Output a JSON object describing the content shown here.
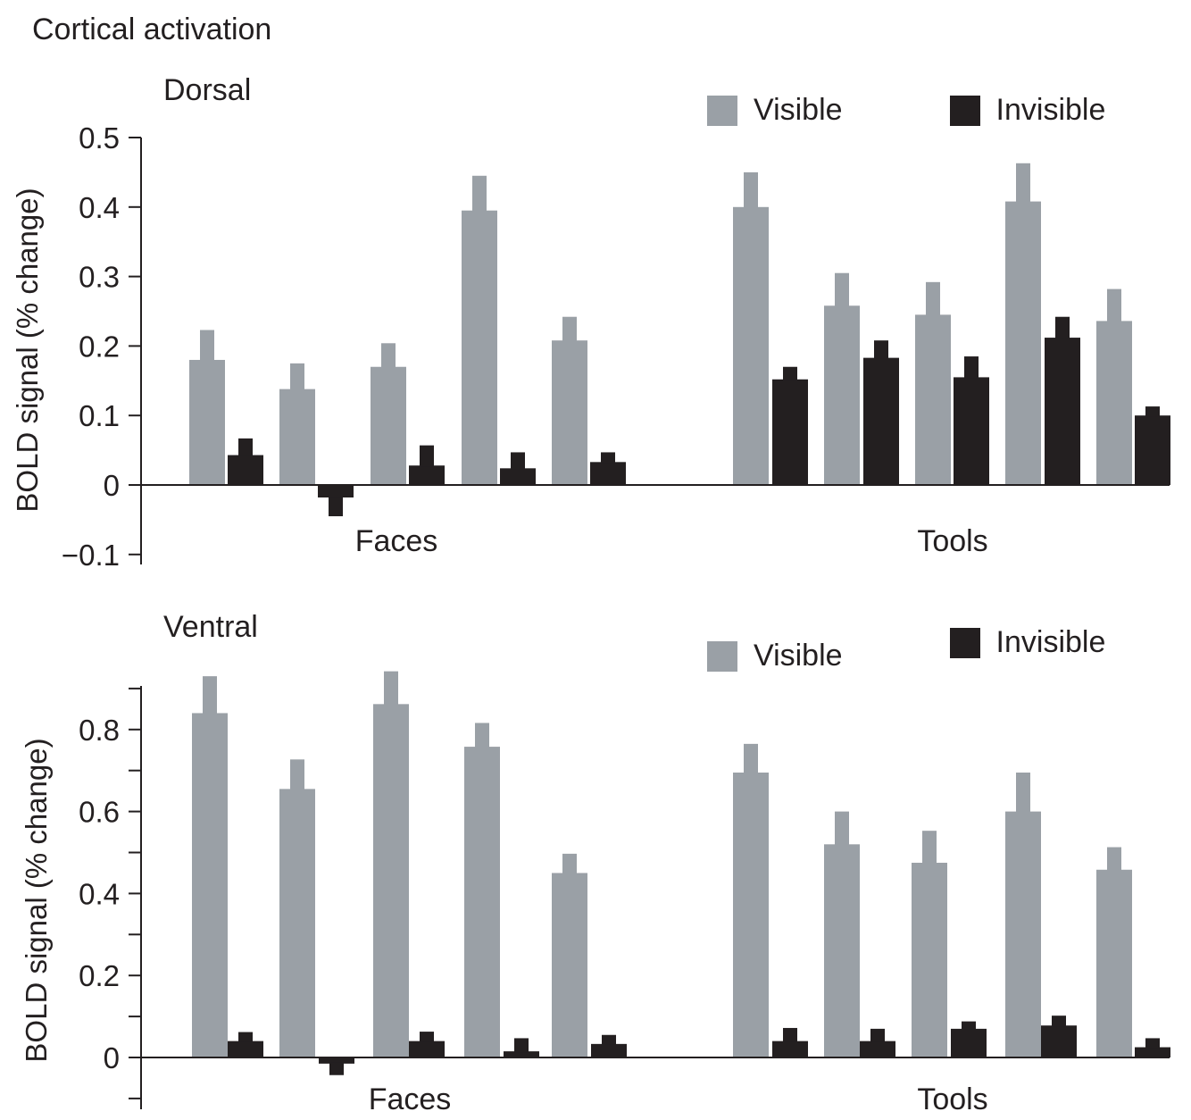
{
  "title": "Cortical activation",
  "colors": {
    "visible": "#9aa0a6",
    "invisible": "#231f20"
  },
  "chart_data": [
    {
      "type": "bar",
      "panel": "Dorsal",
      "ylabel": "BOLD signal (% change)",
      "ylim": [
        -0.1,
        0.5
      ],
      "yticks": [
        -0.1,
        0,
        0.1,
        0.2,
        0.3,
        0.4,
        0.5
      ],
      "ytick_labels": [
        "−0.1",
        "0",
        "0.1",
        "0.2",
        "0.3",
        "0.4",
        "0.5"
      ],
      "groups": [
        "Faces",
        "Tools"
      ],
      "legend": [
        "Visible",
        "Invisible"
      ],
      "legend_position": "top-right",
      "series": [
        {
          "name": "Visible",
          "group": "Faces",
          "values": [
            0.18,
            0.138,
            0.17,
            0.395,
            0.208
          ],
          "errors": [
            0.043,
            0.037,
            0.034,
            0.05,
            0.034
          ]
        },
        {
          "name": "Invisible",
          "group": "Faces",
          "values": [
            0.043,
            -0.018,
            0.028,
            0.024,
            0.033
          ],
          "errors": [
            0.024,
            0.027,
            0.029,
            0.023,
            0.014
          ]
        },
        {
          "name": "Visible",
          "group": "Tools",
          "values": [
            0.4,
            0.258,
            0.245,
            0.408,
            0.236
          ],
          "errors": [
            0.05,
            0.047,
            0.047,
            0.055,
            0.046
          ]
        },
        {
          "name": "Invisible",
          "group": "Tools",
          "values": [
            0.152,
            0.183,
            0.155,
            0.212,
            0.1
          ],
          "errors": [
            0.018,
            0.025,
            0.03,
            0.03,
            0.013
          ]
        }
      ]
    },
    {
      "type": "bar",
      "panel": "Ventral",
      "ylabel": "BOLD signal (% change)",
      "ylim": [
        -0.1,
        0.9
      ],
      "yticks": [
        0,
        0.2,
        0.4,
        0.6,
        0.8
      ],
      "ytick_labels": [
        "0",
        "0.2",
        "0.4",
        "0.6",
        "0.8"
      ],
      "groups": [
        "Faces",
        "Tools"
      ],
      "legend": [
        "Visible",
        "Invisible"
      ],
      "legend_position": "top-right",
      "series": [
        {
          "name": "Visible",
          "group": "Faces",
          "values": [
            0.84,
            0.655,
            0.862,
            0.758,
            0.45
          ],
          "errors": [
            0.09,
            0.072,
            0.08,
            0.058,
            0.047
          ]
        },
        {
          "name": "Invisible",
          "group": "Faces",
          "values": [
            0.04,
            -0.015,
            0.04,
            0.015,
            0.033
          ],
          "errors": [
            0.022,
            0.028,
            0.023,
            0.032,
            0.022
          ]
        },
        {
          "name": "Visible",
          "group": "Tools",
          "values": [
            0.695,
            0.52,
            0.475,
            0.6,
            0.458
          ],
          "errors": [
            0.07,
            0.08,
            0.078,
            0.095,
            0.055
          ]
        },
        {
          "name": "Invisible",
          "group": "Tools",
          "values": [
            0.04,
            0.04,
            0.07,
            0.078,
            0.025
          ],
          "errors": [
            0.032,
            0.03,
            0.018,
            0.024,
            0.022
          ]
        }
      ]
    }
  ]
}
